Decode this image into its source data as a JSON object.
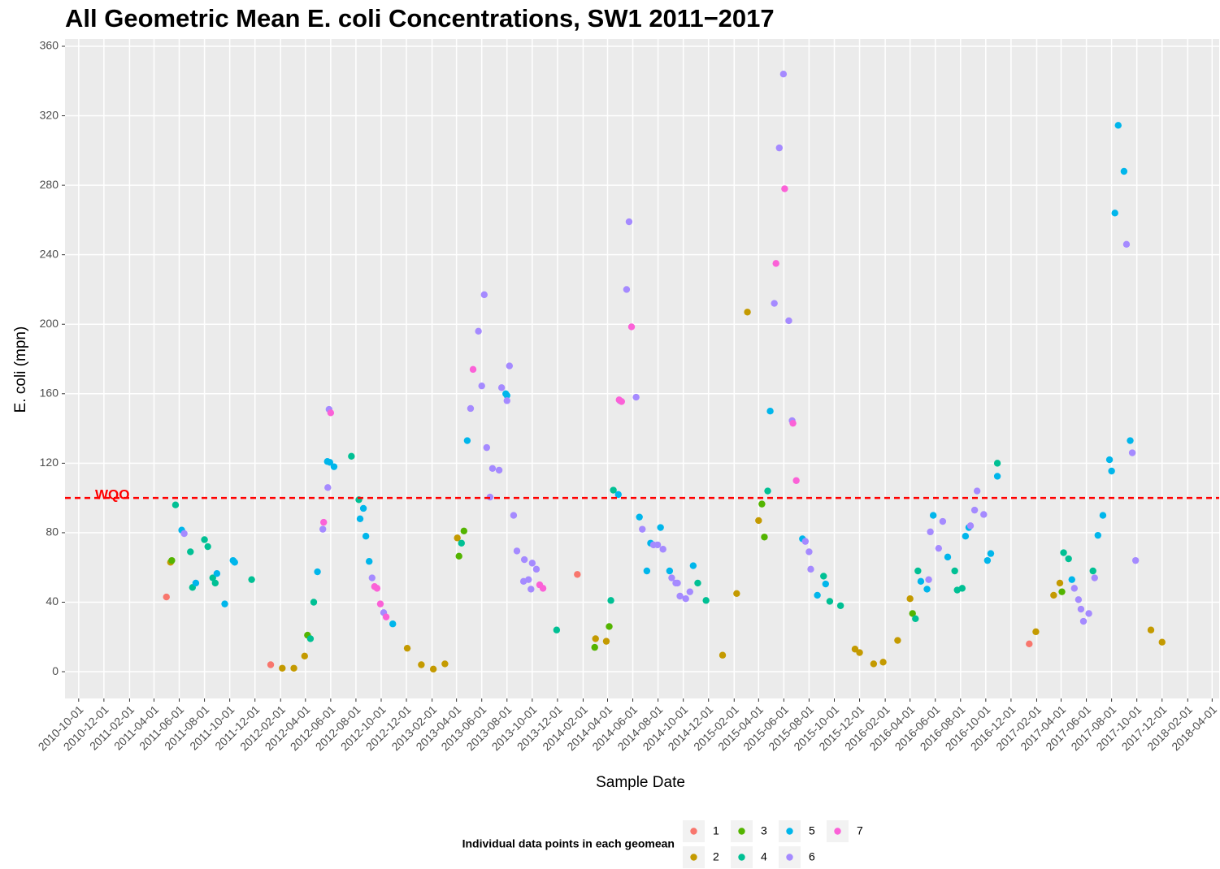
{
  "chart_data": {
    "type": "scatter",
    "title": "All Geometric Mean E. coli Concentrations, SW1 2011−2017",
    "x_label": "Sample Date",
    "y_label": "E. coli (mpn)",
    "legend_title": "Individual data points in each geomean",
    "legend_position": "bottom",
    "grid": true,
    "xlim": [
      "2010-08-29",
      "2018-04-18"
    ],
    "xticks": [
      "2010-10-01",
      "2010-12-01",
      "2011-02-01",
      "2011-04-01",
      "2011-06-01",
      "2011-08-01",
      "2011-10-01",
      "2011-12-01",
      "2012-02-01",
      "2012-04-01",
      "2012-06-01",
      "2012-08-01",
      "2012-10-01",
      "2012-12-01",
      "2013-02-01",
      "2013-04-01",
      "2013-06-01",
      "2013-08-01",
      "2013-10-01",
      "2013-12-01",
      "2014-02-01",
      "2014-04-01",
      "2014-06-01",
      "2014-08-01",
      "2014-10-01",
      "2014-12-01",
      "2015-02-01",
      "2015-04-01",
      "2015-06-01",
      "2015-08-01",
      "2015-10-01",
      "2015-12-01",
      "2016-02-01",
      "2016-04-01",
      "2016-06-01",
      "2016-08-01",
      "2016-10-01",
      "2016-12-01",
      "2017-02-01",
      "2017-04-01",
      "2017-06-01",
      "2017-08-01",
      "2017-10-01",
      "2017-12-01",
      "2018-02-01",
      "2018-04-01"
    ],
    "ylim": [
      -15.4,
      364.2
    ],
    "yticks": [
      0,
      40,
      80,
      120,
      160,
      200,
      240,
      280,
      320,
      360
    ],
    "hline": {
      "value": 100,
      "label": "WQO",
      "color": "#ff0000"
    },
    "series": [
      {
        "name": "1",
        "color": "#F8766D",
        "x": [
          "2011-05-01",
          "2012-01-08",
          "2014-01-18",
          "2017-01-14"
        ],
        "values": [
          43,
          4,
          56,
          16
        ]
      },
      {
        "name": "2",
        "color": "#C49A00",
        "x": [
          "2011-05-11",
          "2012-02-05",
          "2012-03-04",
          "2012-03-30",
          "2012-12-03",
          "2013-01-06",
          "2013-02-04",
          "2013-03-04",
          "2013-04-03",
          "2014-03-03",
          "2014-03-29",
          "2015-01-04",
          "2015-02-07",
          "2015-03-05",
          "2015-04-01",
          "2015-11-20",
          "2015-12-01",
          "2016-01-04",
          "2016-01-27",
          "2016-03-02",
          "2016-04-01",
          "2017-01-30",
          "2017-03-14",
          "2017-03-29",
          "2017-11-04",
          "2017-12-01"
        ],
        "values": [
          63,
          2,
          2,
          9,
          13.5,
          4,
          1.5,
          4.5,
          77,
          19,
          17.5,
          9.5,
          45,
          207,
          87,
          13,
          11,
          4.5,
          5.5,
          18,
          42,
          23,
          44,
          51,
          24,
          17
        ]
      },
      {
        "name": "3",
        "color": "#53B400",
        "x": [
          "2011-05-14",
          "2012-04-06",
          "2013-04-07",
          "2013-04-19",
          "2014-03-01",
          "2014-04-05",
          "2015-04-09",
          "2015-04-15",
          "2016-04-07",
          "2017-04-03"
        ],
        "values": [
          64,
          21,
          66.5,
          81,
          14,
          26,
          96.5,
          77.5,
          33.5,
          46
        ]
      },
      {
        "name": "4",
        "color": "#00C094",
        "x": [
          "2011-05-23",
          "2011-06-28",
          "2011-07-03",
          "2011-08-01",
          "2011-08-09",
          "2011-08-21",
          "2011-08-27",
          "2011-11-23",
          "2012-04-13",
          "2012-04-21",
          "2012-07-21",
          "2012-08-08",
          "2013-04-13",
          "2013-11-29",
          "2014-04-09",
          "2014-04-15",
          "2014-11-05",
          "2014-11-25",
          "2015-04-23",
          "2015-09-05",
          "2015-09-20",
          "2015-10-16",
          "2016-04-14",
          "2016-04-20",
          "2016-07-18",
          "2016-07-24",
          "2016-08-05",
          "2016-10-29",
          "2017-04-07",
          "2017-04-19",
          "2017-06-17"
        ],
        "values": [
          96,
          69,
          48.5,
          76,
          72,
          54,
          51,
          53,
          19,
          40,
          124,
          99,
          74,
          24,
          41,
          104.5,
          51,
          41,
          104,
          55,
          40.5,
          38,
          30.5,
          58,
          58,
          47,
          48,
          120,
          68.5,
          65,
          58
        ]
      },
      {
        "name": "5",
        "color": "#00B6EB",
        "x": [
          "2011-06-07",
          "2011-07-11",
          "2011-08-31",
          "2011-09-19",
          "2011-10-09",
          "2011-10-13",
          "2012-04-30",
          "2012-05-24",
          "2012-05-30",
          "2012-06-09",
          "2012-08-11",
          "2012-08-19",
          "2012-08-25",
          "2012-09-02",
          "2012-10-29",
          "2013-04-27",
          "2013-07-29",
          "2013-08-01",
          "2014-04-27",
          "2014-06-17",
          "2014-07-05",
          "2014-07-14",
          "2014-08-07",
          "2014-08-29",
          "2014-10-25",
          "2015-04-29",
          "2015-07-16",
          "2015-08-21",
          "2015-09-10",
          "2016-04-27",
          "2016-05-12",
          "2016-05-27",
          "2016-07-01",
          "2016-08-13",
          "2016-08-21",
          "2016-10-05",
          "2016-10-13",
          "2016-10-29",
          "2017-04-27",
          "2017-06-29",
          "2017-07-11",
          "2017-07-27",
          "2017-08-01",
          "2017-08-09",
          "2017-08-17",
          "2017-08-31",
          "2017-09-15"
        ],
        "values": [
          81.5,
          51,
          56.5,
          39,
          64,
          63,
          57.5,
          121,
          120.5,
          118,
          88,
          94,
          78,
          63.5,
          27.5,
          133,
          160,
          159,
          102,
          89,
          58,
          74,
          83,
          58,
          61,
          150,
          76.5,
          44,
          50.5,
          52,
          47.5,
          90,
          66,
          78,
          83,
          64,
          68,
          112.5,
          53,
          78.5,
          90,
          122,
          115.5,
          264,
          314.5,
          288,
          133
        ]
      },
      {
        "name": "6",
        "color": "#A58AFF",
        "x": [
          "2011-06-13",
          "2012-05-13",
          "2012-05-25",
          "2012-05-28",
          "2012-09-09",
          "2012-10-07",
          "2013-05-05",
          "2013-05-24",
          "2013-06-01",
          "2013-06-07",
          "2013-06-13",
          "2013-06-21",
          "2013-06-27",
          "2013-07-13",
          "2013-07-19",
          "2013-08-01",
          "2013-08-07",
          "2013-08-17",
          "2013-08-25",
          "2013-09-10",
          "2013-09-12",
          "2013-09-22",
          "2013-09-28",
          "2013-10-01",
          "2013-10-11",
          "2014-05-01",
          "2014-05-17",
          "2014-05-23",
          "2014-06-09",
          "2014-06-24",
          "2014-07-21",
          "2014-07-31",
          "2014-08-13",
          "2014-09-03",
          "2014-09-13",
          "2014-09-17",
          "2014-09-23",
          "2014-10-07",
          "2014-10-17",
          "2015-05-09",
          "2015-05-21",
          "2015-05-31",
          "2015-06-13",
          "2015-06-21",
          "2015-07-23",
          "2015-08-01",
          "2015-08-05",
          "2016-05-16",
          "2016-05-20",
          "2016-06-09",
          "2016-06-19",
          "2016-08-25",
          "2016-09-04",
          "2016-09-10",
          "2016-09-26",
          "2017-05-03",
          "2017-05-13",
          "2017-05-19",
          "2017-05-25",
          "2017-06-07",
          "2017-06-21",
          "2017-09-06",
          "2017-09-20",
          "2017-09-28"
        ],
        "values": [
          79.5,
          82,
          106,
          151,
          54,
          34,
          151.5,
          196,
          164.5,
          217,
          129,
          100.5,
          117,
          116,
          163.5,
          156,
          176,
          90,
          69.5,
          52,
          64.5,
          53,
          47.5,
          62.5,
          59,
          156,
          220,
          259,
          158,
          82,
          73,
          73,
          70.5,
          54,
          51,
          51,
          43.5,
          42,
          46,
          212,
          301.5,
          344,
          202,
          144.5,
          75,
          69,
          59,
          53,
          80.5,
          71,
          86.5,
          84,
          93,
          104,
          90.5,
          48,
          41.5,
          36,
          29,
          33.5,
          54,
          246,
          126,
          64
        ]
      },
      {
        "name": "7",
        "color": "#FB61D7",
        "x": [
          "2012-05-15",
          "2012-06-01",
          "2012-09-15",
          "2012-09-21",
          "2012-09-29",
          "2012-10-13",
          "2013-05-11",
          "2013-10-19",
          "2013-10-27",
          "2014-04-29",
          "2014-05-05",
          "2014-05-29",
          "2015-05-13",
          "2015-06-03",
          "2015-06-23",
          "2015-07-01"
        ],
        "values": [
          86,
          149,
          49,
          48,
          39,
          31.5,
          174,
          50,
          48,
          156.5,
          155.5,
          198.5,
          235,
          278,
          143,
          110
        ]
      }
    ]
  }
}
